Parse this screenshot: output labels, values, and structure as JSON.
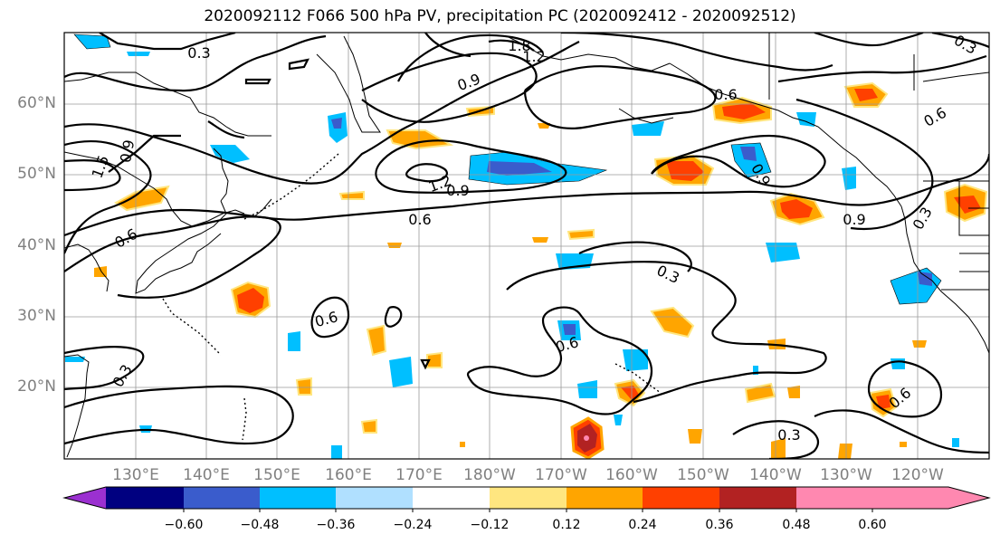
{
  "title": "2020092112 F066 500 hPa PV, precipitation PC (2020092412 - 2020092512)",
  "latitude_labels": [
    "60°N",
    "50°N",
    "40°N",
    "30°N",
    "20°N"
  ],
  "longitude_labels": [
    "130°E",
    "140°E",
    "150°E",
    "160°E",
    "170°E",
    "180°W",
    "170°W",
    "160°W",
    "150°W",
    "140°W",
    "130°W",
    "120°W"
  ],
  "contour_labels": [
    "0.3",
    "1.8",
    "1.2",
    "0.9",
    "0.6",
    "1.5",
    "0.9",
    "1.2",
    "0.9",
    "0.6",
    "0.6",
    "0.6",
    "0.6",
    "0.3",
    "0.6",
    "0.3",
    "0.9",
    "0.9",
    "0.3",
    "0.6",
    "0.3",
    "0.3"
  ],
  "colorbar": {
    "tick_labels": [
      "−0.60",
      "−0.48",
      "−0.36",
      "−0.24",
      "−0.12",
      "0.12",
      "0.24",
      "0.36",
      "0.48",
      "0.60"
    ],
    "colors": [
      "#9b30d0",
      "#000080",
      "#3a5ccc",
      "#00bfff",
      "#b0e0ff",
      "#ffffff",
      "#ffe680",
      "#ffa500",
      "#ff4000",
      "#b22222",
      "#ff88b0"
    ]
  }
}
